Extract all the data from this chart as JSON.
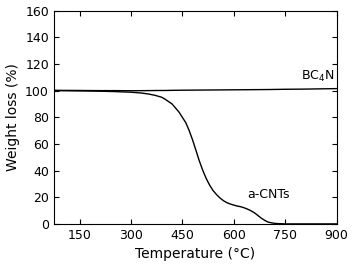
{
  "title": "",
  "xlabel": "Temperature (°C)",
  "ylabel": "Weight loss (%)",
  "xlim": [
    75,
    900
  ],
  "ylim": [
    0,
    160
  ],
  "xticks": [
    150,
    300,
    450,
    600,
    750,
    900
  ],
  "yticks": [
    0,
    20,
    40,
    60,
    80,
    100,
    120,
    140,
    160
  ],
  "bc4n_label": "BC$_4$N",
  "acnt_label": "a-CNTs",
  "line_color": "#000000",
  "background_color": "#ffffff",
  "label_fontsize": 10,
  "tick_fontsize": 9,
  "annotation_fontsize": 9,
  "bc4n_x": [
    75,
    150,
    200,
    250,
    300,
    350,
    380,
    400,
    420,
    450,
    500,
    550,
    600,
    650,
    700,
    750,
    800,
    850,
    900
  ],
  "bc4n_y": [
    100.2,
    100.1,
    100.0,
    100.0,
    99.9,
    100.0,
    100.1,
    100.1,
    100.2,
    100.3,
    100.4,
    100.5,
    100.6,
    100.7,
    100.8,
    101.0,
    101.1,
    101.3,
    101.5
  ],
  "acnts_x": [
    75,
    150,
    200,
    250,
    300,
    330,
    350,
    370,
    390,
    400,
    420,
    440,
    460,
    470,
    480,
    490,
    500,
    510,
    520,
    530,
    540,
    550,
    560,
    570,
    580,
    590,
    600,
    610,
    620,
    630,
    640,
    650,
    660,
    670,
    680,
    690,
    700,
    710,
    720,
    730,
    740,
    750,
    760,
    780,
    800,
    850,
    900
  ],
  "acnts_y": [
    100.0,
    99.8,
    99.6,
    99.3,
    98.8,
    98.2,
    97.5,
    96.5,
    95.0,
    93.5,
    90.0,
    84.0,
    76.0,
    70.0,
    63.0,
    55.0,
    47.0,
    40.0,
    34.0,
    29.0,
    25.0,
    22.0,
    19.5,
    17.5,
    16.0,
    15.0,
    14.2,
    13.5,
    13.0,
    12.2,
    11.2,
    10.0,
    8.5,
    6.5,
    4.5,
    2.8,
    1.5,
    0.9,
    0.5,
    0.3,
    0.2,
    0.1,
    0.1,
    0.1,
    0.1,
    0.1,
    0.1
  ]
}
